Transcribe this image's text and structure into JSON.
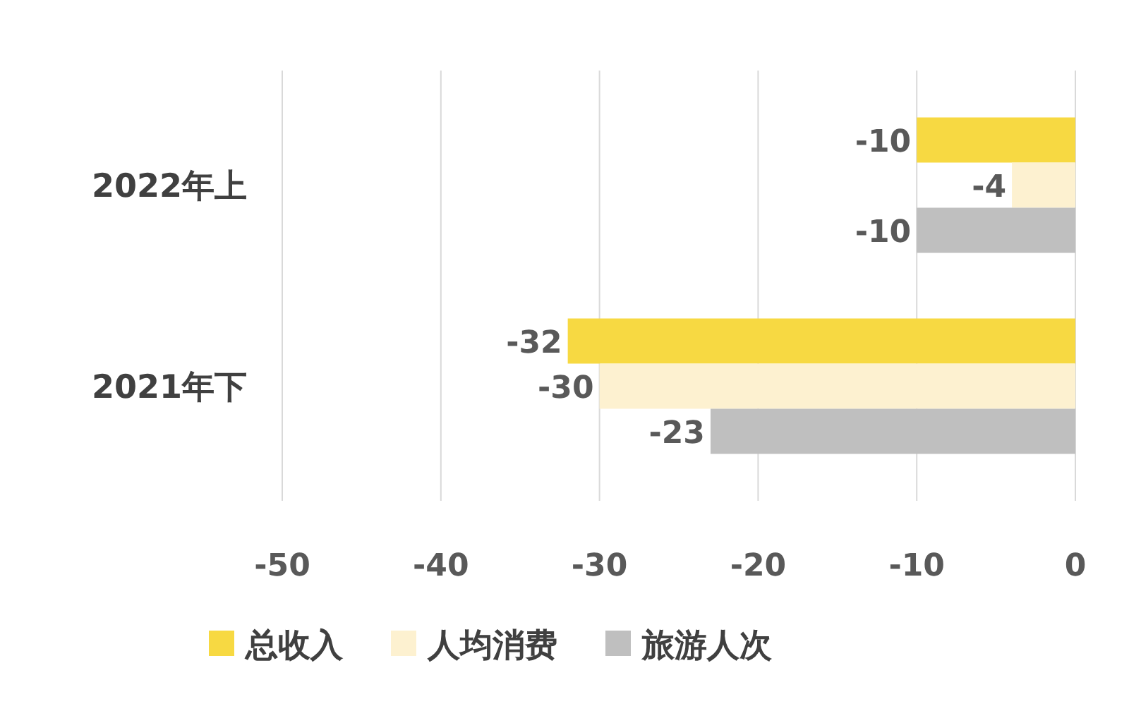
{
  "chart_data": {
    "type": "bar",
    "orientation": "horizontal",
    "categories": [
      "2022年上",
      "2021年下"
    ],
    "series": [
      {
        "name": "总收入",
        "color": "#f7d942",
        "values": [
          -10,
          -32
        ]
      },
      {
        "name": "人均消费",
        "color": "#fdf1d0",
        "values": [
          -4,
          -30
        ]
      },
      {
        "name": "旅游人次",
        "color": "#bfbfbf",
        "values": [
          -10,
          -23
        ]
      }
    ],
    "xlim": [
      -50,
      0
    ],
    "xticks": [
      -50,
      -40,
      -30,
      -20,
      -10,
      0
    ],
    "grid": "x",
    "legend": "bottom",
    "data_labels": true
  }
}
